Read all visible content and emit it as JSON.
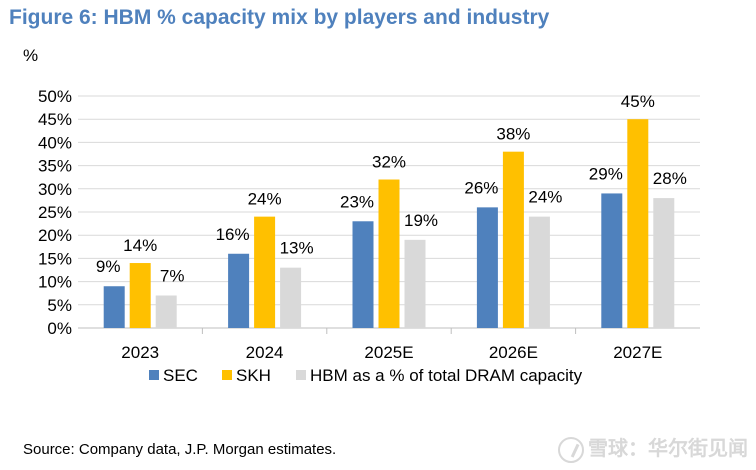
{
  "header": {
    "title": "Figure 6: HBM % capacity mix by players and industry",
    "unit": "%"
  },
  "footer": {
    "source": "Source: Company data, J.P. Morgan estimates.",
    "watermark": "雪球：华尔街见闻"
  },
  "colors": {
    "title": "#4f81bd",
    "SEC": "#4f81bd",
    "SKH": "#ffc000",
    "HBM": "#d9d9d9",
    "grid": "#d9d9d9"
  },
  "chart_data": {
    "type": "bar",
    "title": "Figure 6: HBM % capacity mix by players and industry",
    "ylabel": "%",
    "xlabel": "",
    "ylim": [
      0,
      50
    ],
    "ytick_labels": [
      "0%",
      "5%",
      "10%",
      "15%",
      "20%",
      "25%",
      "30%",
      "35%",
      "40%",
      "45%",
      "50%"
    ],
    "categories": [
      "2023",
      "2024",
      "2025E",
      "2026E",
      "2027E"
    ],
    "series": [
      {
        "name": "SEC",
        "values": [
          9,
          16,
          23,
          26,
          29
        ],
        "labels": [
          "9%",
          "16%",
          "23%",
          "26%",
          "29%"
        ]
      },
      {
        "name": "SKH",
        "values": [
          14,
          24,
          32,
          38,
          45
        ],
        "labels": [
          "14%",
          "24%",
          "32%",
          "38%",
          "45%"
        ]
      },
      {
        "name": "HBM as a % of total DRAM capacity",
        "values": [
          7,
          13,
          19,
          24,
          28
        ],
        "labels": [
          "7%",
          "13%",
          "19%",
          "24%",
          "28%"
        ]
      }
    ],
    "grid": true,
    "legend_position": "bottom"
  }
}
